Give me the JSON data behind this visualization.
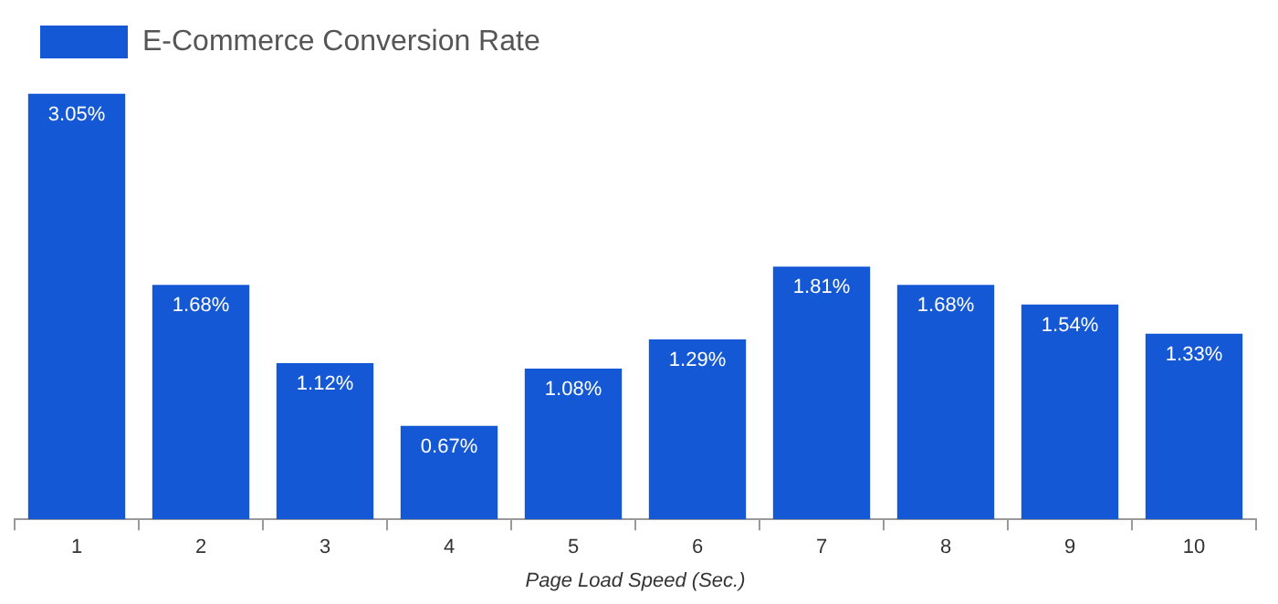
{
  "chart_data": {
    "type": "bar",
    "xlabel": "Page Load Speed (Sec.)",
    "categories": [
      "1",
      "2",
      "3",
      "4",
      "5",
      "6",
      "7",
      "8",
      "9",
      "10"
    ],
    "series": [
      {
        "name": "E-Commerce Conversion Rate",
        "color": "#1458d6",
        "values": [
          3.05,
          1.68,
          1.12,
          0.67,
          1.08,
          1.29,
          1.81,
          1.68,
          1.54,
          1.33
        ],
        "value_labels": [
          "3.05%",
          "1.68%",
          "1.12%",
          "0.67%",
          "1.08%",
          "1.29%",
          "1.81%",
          "1.68%",
          "1.54%",
          "1.33%"
        ]
      }
    ],
    "legend": "top left",
    "grid": false
  }
}
